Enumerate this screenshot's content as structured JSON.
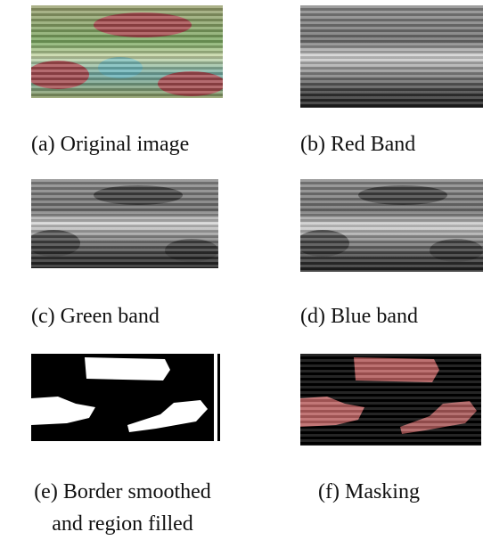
{
  "panels": [
    {
      "caption": [
        "(a) Original image"
      ]
    },
    {
      "caption": [
        "(b) Red Band"
      ]
    },
    {
      "caption": [
        "(c) Green band"
      ]
    },
    {
      "caption": [
        "(d) Blue band"
      ]
    },
    {
      "caption": [
        "(e) Border smoothed",
        "and region filled"
      ]
    },
    {
      "caption": [
        "(f) Masking"
      ]
    }
  ]
}
